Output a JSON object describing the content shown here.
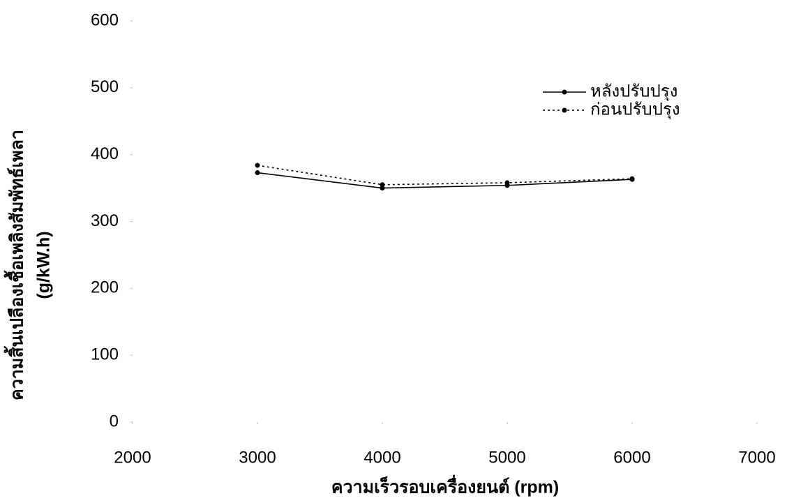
{
  "chart_data": {
    "type": "line",
    "xlabel": "ความเร็วรอบเครื่องยนต์ (rpm)",
    "ylabel": [
      "ความสิ้นเปลืองเชื้อเพลิงสัมพัทธ์เพลา",
      "(g/kW.h)"
    ],
    "x": [
      3000,
      4000,
      5000,
      6000
    ],
    "series": [
      {
        "name": "หลังปรับปรุง",
        "color": "#000000",
        "style": "solid",
        "values": [
          373,
          350,
          354,
          363
        ]
      },
      {
        "name": "ก่อนปรับปรุง",
        "color": "#000000",
        "style": "dotted",
        "values": [
          384,
          355,
          358,
          364
        ]
      }
    ],
    "xlim": [
      2000,
      7000
    ],
    "xticks": [
      2000,
      3000,
      4000,
      5000,
      6000,
      7000
    ],
    "ylim": [
      0,
      600
    ],
    "yticks": [
      0,
      100,
      200,
      300,
      400,
      500,
      600
    ],
    "grid": false,
    "legend": "upper right"
  }
}
